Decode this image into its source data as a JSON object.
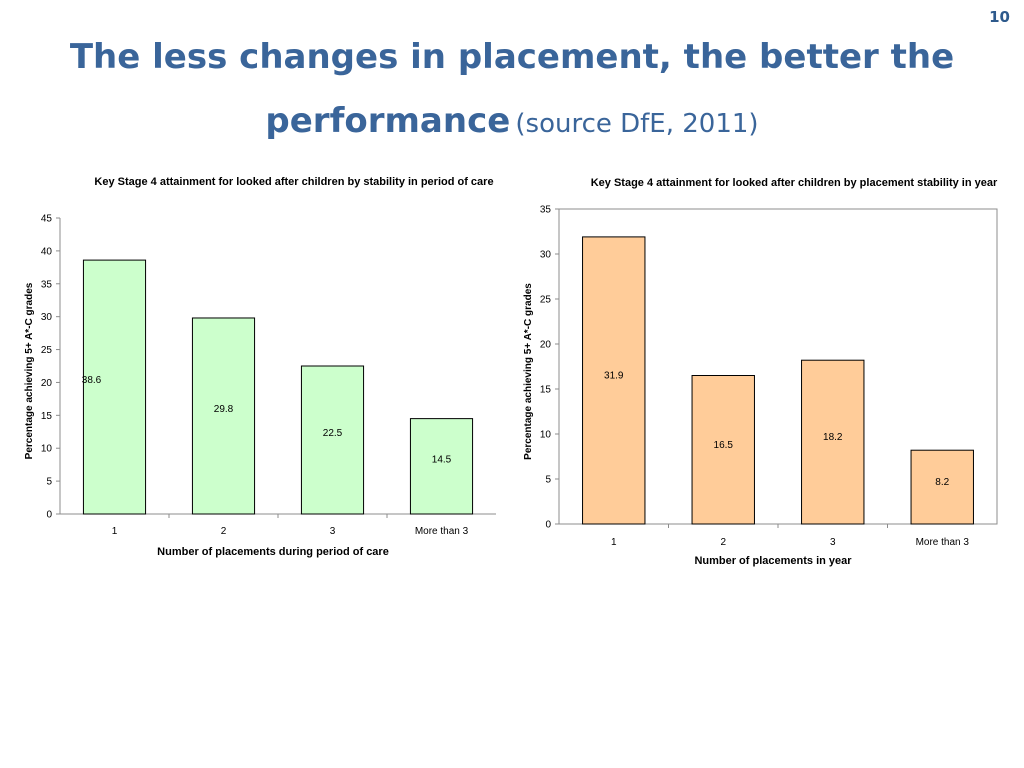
{
  "slide": {
    "page_number": "10",
    "title_line1": "The less changes in placement, the better the",
    "title_line2": "performance",
    "title_source": "(source DfE, 2011)"
  },
  "colors": {
    "title": "#3a659a",
    "left_bar": "#ccffcc",
    "right_bar": "#ffcc99",
    "bar_stroke": "#000000"
  },
  "chart_data": [
    {
      "type": "bar",
      "title": "Key Stage 4 attainment for looked after children by stability in period of care",
      "xlabel": "Number of placements during period of care",
      "ylabel": "Percentage achieving 5+ A*-C grades",
      "categories": [
        "1",
        "2",
        "3",
        "More than 3"
      ],
      "values": [
        38.6,
        29.8,
        22.5,
        14.5
      ],
      "data_labels": [
        "38.6",
        "29.8",
        "22.5",
        "14.5"
      ],
      "ylim": [
        0,
        45
      ],
      "yticks": [
        "0",
        "5",
        "10",
        "15",
        "20",
        "25",
        "30",
        "35",
        "40",
        "45"
      ],
      "grid": false,
      "bar_color": "#ccffcc"
    },
    {
      "type": "bar",
      "title": "Key Stage 4 attainment for looked after children by placement stability in year",
      "xlabel": "Number of placements in year",
      "ylabel": "Percentage achieving 5+ A*-C grades",
      "categories": [
        "1",
        "2",
        "3",
        "More than 3"
      ],
      "values": [
        31.9,
        16.5,
        18.2,
        8.2
      ],
      "data_labels": [
        "31.9",
        "16.5",
        "18.2",
        "8.2"
      ],
      "ylim": [
        0,
        35
      ],
      "yticks": [
        "0",
        "5",
        "10",
        "15",
        "20",
        "25",
        "30",
        "35"
      ],
      "grid": false,
      "bar_color": "#ffcc99"
    }
  ]
}
